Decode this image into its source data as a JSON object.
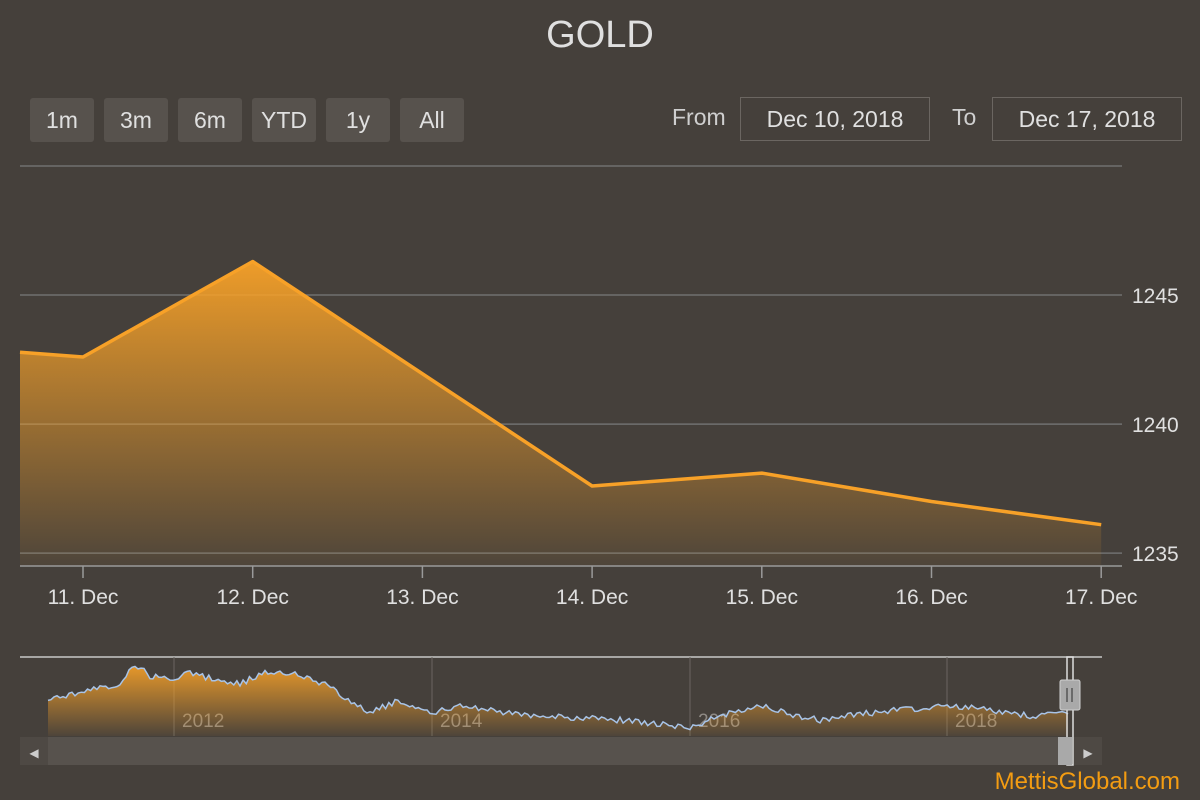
{
  "chart_data": {
    "type": "area",
    "title": "GOLD",
    "x": [
      "10. Dec",
      "11. Dec",
      "12. Dec",
      "13. Dec",
      "14. Dec",
      "15. Dec",
      "16. Dec",
      "17. Dec"
    ],
    "x_ticks": [
      "11. Dec",
      "12. Dec",
      "13. Dec",
      "14. Dec",
      "15. Dec",
      "16. Dec",
      "17. Dec"
    ],
    "series": [
      {
        "values": [
          1243.1,
          1242.6,
          1246.3,
          null,
          1237.6,
          1238.1,
          1237.0,
          1236.1
        ]
      }
    ],
    "y_ticks": [
      1235,
      1240,
      1245
    ],
    "ylim": [
      1234.5,
      1250.0
    ],
    "grid": true,
    "color": "#f7a128",
    "navigator": {
      "labels": [
        "2012",
        "2014",
        "2016",
        "2018"
      ],
      "line_color": "#a8c4e8"
    }
  },
  "range_selector": {
    "buttons": [
      "1m",
      "3m",
      "6m",
      "YTD",
      "1y",
      "All"
    ],
    "from_label": "From",
    "from_value": "Dec 10, 2018",
    "to_label": "To",
    "to_value": "Dec 17, 2018"
  },
  "navigator_controls": {
    "scroll_left_icon": "◀",
    "scroll_right_icon": "▶"
  },
  "watermark": "MettisGlobal.com"
}
